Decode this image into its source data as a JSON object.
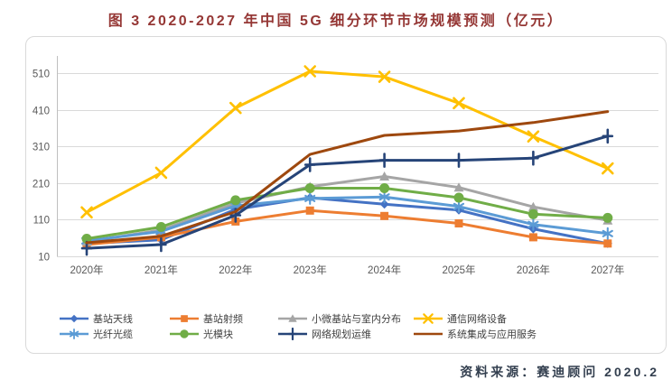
{
  "title": "图 3 2020-2027 年中国 5G 细分环节市场规模预测（亿元）",
  "source_note": "资料来源：赛迪顾问  2020.2",
  "colors": {
    "title": "#953735",
    "source": "#333F4F",
    "grid": "#D9D9D9",
    "axis": "#BFBFBF",
    "tick_label": "#595959",
    "box_border": "#D9D9D9",
    "legend_label": "#404040",
    "background": "#FFFFFF"
  },
  "chart_data": {
    "type": "line",
    "title": "图 3 2020-2027 年中国 5G 细分环节市场规模预测（亿元）",
    "xlabel": "",
    "ylabel": "",
    "units": "亿元",
    "categories": [
      "2020年",
      "2021年",
      "2022年",
      "2023年",
      "2024年",
      "2025年",
      "2026年",
      "2027年"
    ],
    "yticks": [
      10,
      110,
      210,
      310,
      410,
      510
    ],
    "ylim": [
      10,
      560
    ],
    "grid": true,
    "legend_position": "bottom",
    "series": [
      {
        "name": "基站天线",
        "color": "#4472C4",
        "marker": "diamond",
        "values": [
          45,
          55,
          138,
          170,
          152,
          136,
          85,
          45
        ]
      },
      {
        "name": "基站射频",
        "color": "#ED7D31",
        "marker": "square",
        "values": [
          42,
          62,
          105,
          135,
          120,
          100,
          62,
          45
        ]
      },
      {
        "name": "小微基站与室内分布",
        "color": "#A5A5A5",
        "marker": "triangle",
        "values": [
          50,
          82,
          155,
          200,
          228,
          198,
          145,
          108
        ]
      },
      {
        "name": "通信网络设备",
        "color": "#FFC000",
        "marker": "x",
        "values": [
          130,
          238,
          415,
          515,
          500,
          428,
          337,
          250
        ]
      },
      {
        "name": "光纤光缆",
        "color": "#5B9BD5",
        "marker": "asterisk",
        "values": [
          52,
          78,
          148,
          168,
          172,
          146,
          97,
          72
        ]
      },
      {
        "name": "光模块",
        "color": "#70AD47",
        "marker": "circle",
        "values": [
          58,
          90,
          163,
          196,
          196,
          170,
          125,
          115
        ]
      },
      {
        "name": "网络规划运维",
        "color": "#264478",
        "marker": "plus",
        "values": [
          32,
          42,
          122,
          260,
          272,
          272,
          278,
          338
        ]
      },
      {
        "name": "系统集成与应用服务",
        "color": "#9E480E",
        "marker": "none",
        "values": [
          47,
          65,
          132,
          288,
          340,
          352,
          375,
          405
        ]
      }
    ]
  }
}
